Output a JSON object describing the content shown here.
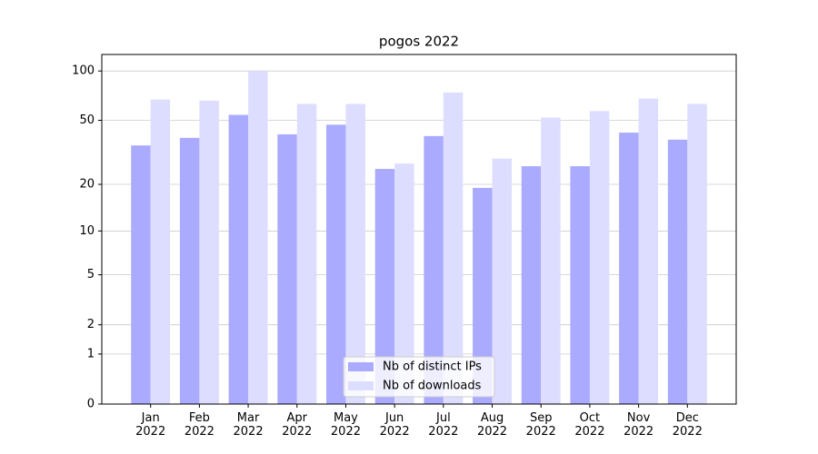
{
  "chart_data": {
    "type": "bar",
    "title": "pogos 2022",
    "categories": [
      "Jan\n2022",
      "Feb\n2022",
      "Mar\n2022",
      "Apr\n2022",
      "May\n2022",
      "Jun\n2022",
      "Jul\n2022",
      "Aug\n2022",
      "Sep\n2022",
      "Oct\n2022",
      "Nov\n2022",
      "Dec\n2022"
    ],
    "series": [
      {
        "name": "Nb of distinct IPs",
        "color": "#aaaaff",
        "values": [
          35,
          39,
          54,
          41,
          47,
          25,
          40,
          19,
          26,
          26,
          42,
          38
        ]
      },
      {
        "name": "Nb of downloads",
        "color": "#ddddff",
        "values": [
          67,
          66,
          100,
          63,
          63,
          27,
          74,
          29,
          52,
          57,
          68,
          63
        ]
      }
    ],
    "yscale": "log1p",
    "ylim": [
      0,
      126
    ],
    "yticks": [
      0,
      1,
      2,
      5,
      10,
      20,
      50,
      100
    ],
    "grid": true,
    "legend": "lower center"
  }
}
